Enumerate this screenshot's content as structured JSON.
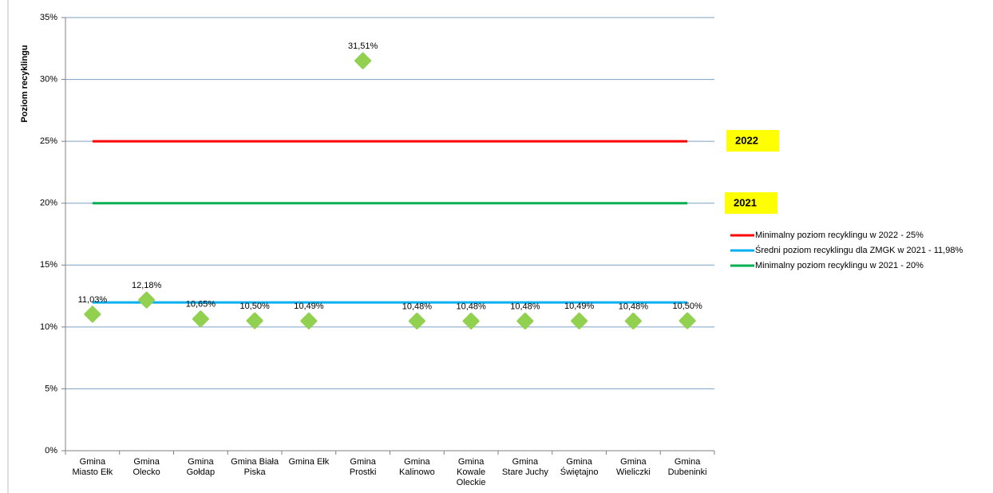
{
  "chart_data": {
    "type": "line",
    "y_label": "Poziom recyklingu",
    "categories": [
      "Gmina\nMiasto Ełk",
      "Gmina\nOlecko",
      "Gmina\nGołdap",
      "Gmina Biała\nPiska",
      "Gmina Ełk",
      "Gmina\nProstki",
      "Gmina\nKalinowo",
      "Gmina\nKowale\nOleckie",
      "Gmina\nStare Juchy",
      "Gmina\nŚwiętajno",
      "Gmina\nWieliczki",
      "Gmina\nDubeninki"
    ],
    "series": [
      {
        "name": "Minimalny poziom recyklingu w 2022 - 25%",
        "type": "line",
        "color": "#ff0000",
        "values": [
          25,
          25,
          25,
          25,
          25,
          25,
          25,
          25,
          25,
          25,
          25,
          25
        ]
      },
      {
        "name": "Średni poziom recyklingu dla ZMGK w 2021 - 11,98%",
        "type": "line",
        "color": "#00b0f0",
        "values": [
          11.98,
          11.98,
          11.98,
          11.98,
          11.98,
          11.98,
          11.98,
          11.98,
          11.98,
          11.98,
          11.98,
          11.98
        ]
      },
      {
        "name": "Minimalny poziom recyklingu w 2021 - 20%",
        "type": "line",
        "color": "#00b050",
        "values": [
          20,
          20,
          20,
          20,
          20,
          20,
          20,
          20,
          20,
          20,
          20,
          20
        ]
      },
      {
        "type": "scatter",
        "color": "#92d050",
        "values": [
          11.03,
          12.18,
          10.65,
          10.5,
          10.49,
          31.51,
          10.48,
          10.48,
          10.48,
          10.49,
          10.48,
          10.5
        ],
        "value_labels": [
          "11,03%",
          "12,18%",
          "10,65%",
          "10,50%",
          "10,49%",
          "31,51%",
          "10,48%",
          "10,48%",
          "10,48%",
          "10,49%",
          "10,48%",
          "10,50%"
        ]
      }
    ],
    "annotations": [
      "2022",
      "2021"
    ],
    "annotation_color": "#ffff00",
    "ylim": [
      0,
      35
    ],
    "yticks": [
      {
        "value": 0,
        "label": "0%"
      },
      {
        "value": 5,
        "label": "5%"
      },
      {
        "value": 10,
        "label": "10%"
      },
      {
        "value": 15,
        "label": "15%"
      },
      {
        "value": 20,
        "label": "20%"
      },
      {
        "value": 25,
        "label": "25%"
      },
      {
        "value": 30,
        "label": "30%"
      },
      {
        "value": 35,
        "label": "35%"
      }
    ],
    "grid": true
  }
}
